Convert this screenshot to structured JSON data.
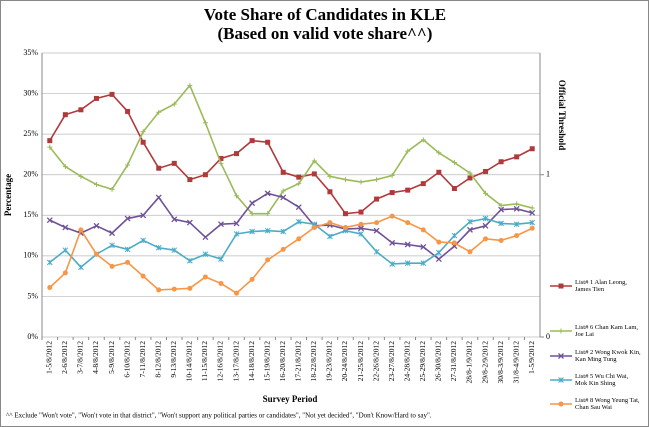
{
  "chart_data": {
    "type": "line",
    "title": "Vote Share of Candidates in KLE",
    "subtitle": "(Based on valid vote share^^)",
    "x_label": "Survey Period",
    "y_label": "Percentage",
    "y2_label": "Official Threshold",
    "footnote": "^^ Exclude \"Won't vote\", \"Won't vote in that district\", \"Won't support any political parties or candidates\", \"Not yet decided\", \"Don't Know/Hard to say\".",
    "categories": [
      "1-5/8/2012",
      "2-6/8/2012",
      "3-7/8/2012",
      "4-8/8/2012",
      "5-9/8/2012",
      "6-10/8/2012",
      "7-11/8/2012",
      "8-12/8/2012",
      "9-13/8/2012",
      "10-14/8/2012",
      "11-15/8/2012",
      "12-16/8/2012",
      "13-17/8/2012",
      "14-18/8/2012",
      "15-19/8/2012",
      "16-20/8/2012",
      "17-21/8/2012",
      "18-22/8/2012",
      "19-23/8/2012",
      "20-24/8/2012",
      "21-25/8/2012",
      "22-26/8/2012",
      "23-27/8/2012",
      "24-28/8/2012",
      "25-29/8/2012",
      "26-30/8/2012",
      "27-31/8/2012",
      "28/8-1/9/2012",
      "29/8-2/9/2012",
      "30/8-3/9/2012",
      "31/8-4/9/2012",
      "1-5/9/2012"
    ],
    "series": [
      {
        "name": "List# 1 Alan Leong, James Tien",
        "color": "#b0393a",
        "marker": "square",
        "values": [
          24.2,
          27.4,
          28,
          29.4,
          29.9,
          27.8,
          24,
          20.8,
          21.4,
          19.4,
          20,
          22,
          22.6,
          24.2,
          24,
          20.3,
          19.7,
          20.1,
          17.9,
          15.2,
          15.4,
          17,
          17.8,
          18.1,
          18.9,
          20.3,
          18.3,
          19.6,
          20.4,
          21.6,
          22.2,
          23.2
        ]
      },
      {
        "name": "List# 6 Chan Kam Lam, Joe Lai",
        "color": "#9bbb59",
        "marker": "cross",
        "values": [
          23.4,
          21,
          19.8,
          18.8,
          18.2,
          21.2,
          25.3,
          27.7,
          28.7,
          31,
          26.4,
          21.4,
          17.4,
          15.2,
          15.2,
          18,
          18.9,
          21.7,
          19.8,
          19.4,
          19.1,
          19.4,
          19.9,
          22.9,
          24.3,
          22.7,
          21.5,
          20.2,
          17.7,
          16.2,
          16.4,
          15.9
        ]
      },
      {
        "name": "List# 2 Wong Kwok Kin, Kan Ming Tung",
        "color": "#6e5197",
        "marker": "x",
        "values": [
          14.4,
          13.5,
          12.8,
          13.7,
          12.8,
          14.6,
          15,
          17.2,
          14.5,
          14.1,
          12.3,
          13.9,
          14,
          16.5,
          17.7,
          17.2,
          16,
          13.7,
          13.8,
          13.3,
          13.4,
          13.1,
          11.6,
          11.4,
          11.1,
          9.6,
          11.2,
          13.2,
          13.7,
          15.7,
          15.8,
          15.3
        ]
      },
      {
        "name": "List# 5 Wu Chi Wai, Mok Kin Shing",
        "color": "#4bacc6",
        "marker": "star",
        "values": [
          9.2,
          10.7,
          8.6,
          10.2,
          11.3,
          10.8,
          11.9,
          11,
          10.7,
          9.4,
          10.2,
          9.6,
          12.7,
          13,
          13.1,
          13,
          14.2,
          13.9,
          12.4,
          13.1,
          12.7,
          10.5,
          9,
          9.1,
          9.1,
          10.4,
          12.5,
          14.2,
          14.6,
          14,
          13.9,
          14.1
        ]
      },
      {
        "name": "List# 8 Wong Yeung Tat, Chan Sau Wai",
        "color": "#f79646",
        "marker": "circle",
        "values": [
          6.1,
          7.9,
          13.2,
          10.2,
          8.7,
          9.2,
          7.5,
          5.8,
          5.9,
          6,
          7.4,
          6.6,
          5.4,
          7.1,
          9.5,
          10.8,
          12.1,
          13.5,
          14.1,
          13.5,
          13.9,
          14.1,
          14.9,
          14.1,
          13.2,
          11.7,
          11.6,
          10.5,
          12.1,
          11.9,
          12.5,
          13.4
        ]
      }
    ],
    "ylim": [
      0,
      35
    ],
    "yticks": [
      {
        "value": 0,
        "label": "0%"
      },
      {
        "value": 5,
        "label": "5%"
      },
      {
        "value": 10,
        "label": "10%"
      },
      {
        "value": 15,
        "label": "15%"
      },
      {
        "value": 20,
        "label": "20%"
      },
      {
        "value": 25,
        "label": "25%"
      },
      {
        "value": 30,
        "label": "30%"
      },
      {
        "value": 35,
        "label": "35%"
      }
    ],
    "y2lim": [
      0,
      1.75
    ],
    "y2ticks": [
      0,
      1
    ],
    "grid": true,
    "legend": "right"
  }
}
